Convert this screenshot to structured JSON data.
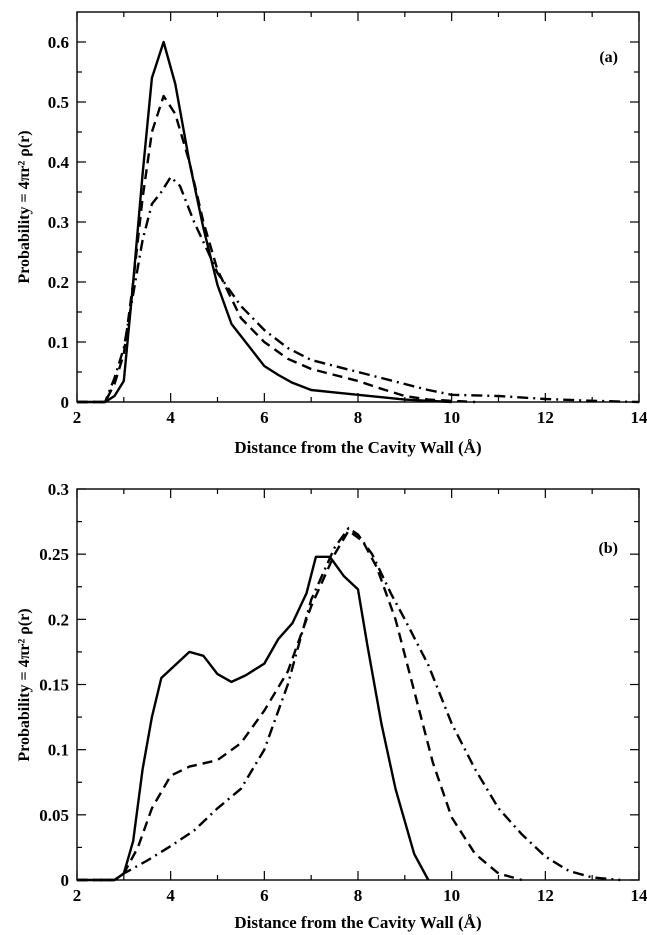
{
  "chart_data": [
    {
      "type": "line",
      "panel_label": "(a)",
      "xlabel": "Distance from the Cavity Wall (Å)",
      "ylabel": "Probability = 4πr² ρ(r)",
      "xlim": [
        2,
        14
      ],
      "ylim": [
        0,
        0.65
      ],
      "xticks": [
        2,
        4,
        6,
        8,
        10,
        12,
        14
      ],
      "yticks": [
        0,
        0.1,
        0.2,
        0.3,
        0.4,
        0.5,
        0.6
      ],
      "xtick_labels": [
        "2",
        "4",
        "6",
        "8",
        "10",
        "12",
        "14"
      ],
      "ytick_labels": [
        "0",
        "0.1",
        "0.2",
        "0.3",
        "0.4",
        "0.5",
        "0.6"
      ],
      "grid": false,
      "series": [
        {
          "style": "solid",
          "x": [
            2.0,
            2.6,
            2.8,
            3.0,
            3.2,
            3.4,
            3.6,
            3.85,
            4.1,
            4.4,
            4.7,
            5.0,
            5.3,
            5.6,
            6.0,
            6.3,
            6.6,
            7.0,
            7.5,
            8.0,
            8.5,
            9.0,
            9.5,
            10.0
          ],
          "y": [
            0.0,
            0.0,
            0.01,
            0.035,
            0.2,
            0.38,
            0.54,
            0.6,
            0.53,
            0.4,
            0.29,
            0.195,
            0.13,
            0.1,
            0.06,
            0.045,
            0.032,
            0.02,
            0.016,
            0.012,
            0.008,
            0.004,
            0.002,
            0.0
          ]
        },
        {
          "style": "dashed",
          "x": [
            2.0,
            2.6,
            2.8,
            3.0,
            3.2,
            3.4,
            3.6,
            3.85,
            4.1,
            4.4,
            4.7,
            5.0,
            5.5,
            6.0,
            6.5,
            7.0,
            7.5,
            8.0,
            8.5,
            9.0,
            9.5,
            10.0,
            10.5
          ],
          "y": [
            0.0,
            0.0,
            0.03,
            0.08,
            0.2,
            0.34,
            0.45,
            0.51,
            0.48,
            0.4,
            0.3,
            0.22,
            0.14,
            0.1,
            0.072,
            0.055,
            0.045,
            0.035,
            0.022,
            0.01,
            0.004,
            0.002,
            0.0
          ]
        },
        {
          "style": "dash-dot",
          "x": [
            2.0,
            2.6,
            2.8,
            3.0,
            3.2,
            3.4,
            3.6,
            3.8,
            4.0,
            4.2,
            4.5,
            4.8,
            5.0,
            5.5,
            6.0,
            6.5,
            7.0,
            7.5,
            8.0,
            8.5,
            9.0,
            9.5,
            10.0,
            11.0,
            12.0,
            13.0,
            14.0
          ],
          "y": [
            0.0,
            0.0,
            0.04,
            0.09,
            0.18,
            0.27,
            0.33,
            0.35,
            0.375,
            0.36,
            0.3,
            0.25,
            0.215,
            0.16,
            0.12,
            0.09,
            0.07,
            0.06,
            0.05,
            0.04,
            0.03,
            0.02,
            0.012,
            0.01,
            0.005,
            0.002,
            0.0
          ]
        }
      ]
    },
    {
      "type": "line",
      "panel_label": "(b)",
      "xlabel": "Distance from the Cavity Wall (Å)",
      "ylabel": "Probability = 4πr² ρ(r)",
      "xlim": [
        2,
        14
      ],
      "ylim": [
        0,
        0.3
      ],
      "xticks": [
        2,
        4,
        6,
        8,
        10,
        12,
        14
      ],
      "yticks": [
        0,
        0.05,
        0.1,
        0.15,
        0.2,
        0.25,
        0.3
      ],
      "xtick_labels": [
        "2",
        "4",
        "6",
        "8",
        "10",
        "12",
        "14"
      ],
      "ytick_labels": [
        "0",
        "0.05",
        "0.1",
        "0.15",
        "0.2",
        "0.25",
        "0.3"
      ],
      "grid": false,
      "series": [
        {
          "style": "solid",
          "x": [
            2.0,
            2.8,
            3.0,
            3.2,
            3.4,
            3.6,
            3.8,
            4.1,
            4.4,
            4.7,
            5.0,
            5.3,
            5.6,
            6.0,
            6.3,
            6.6,
            6.9,
            7.1,
            7.4,
            7.7,
            8.0,
            8.2,
            8.5,
            8.8,
            9.2,
            9.5
          ],
          "y": [
            0.0,
            0.0,
            0.005,
            0.03,
            0.085,
            0.125,
            0.155,
            0.165,
            0.175,
            0.172,
            0.158,
            0.152,
            0.157,
            0.166,
            0.185,
            0.197,
            0.22,
            0.248,
            0.248,
            0.233,
            0.223,
            0.18,
            0.12,
            0.07,
            0.02,
            0.0
          ]
        },
        {
          "style": "dashed",
          "x": [
            2.0,
            2.8,
            3.0,
            3.3,
            3.6,
            4.0,
            4.4,
            5.0,
            5.5,
            6.0,
            6.5,
            7.0,
            7.5,
            7.8,
            8.1,
            8.4,
            8.8,
            9.2,
            9.6,
            10.0,
            10.5,
            11.0,
            11.5
          ],
          "y": [
            0.0,
            0.0,
            0.005,
            0.025,
            0.055,
            0.08,
            0.087,
            0.092,
            0.105,
            0.13,
            0.16,
            0.21,
            0.25,
            0.268,
            0.26,
            0.24,
            0.2,
            0.145,
            0.09,
            0.048,
            0.02,
            0.005,
            0.0
          ]
        },
        {
          "style": "dash-dot",
          "x": [
            2.0,
            2.8,
            3.0,
            3.5,
            4.0,
            4.5,
            5.0,
            5.5,
            6.0,
            6.5,
            7.0,
            7.5,
            7.8,
            8.0,
            8.3,
            8.7,
            9.0,
            9.5,
            10.0,
            10.5,
            11.0,
            11.5,
            12.0,
            12.5,
            13.0,
            13.6
          ],
          "y": [
            0.0,
            0.0,
            0.005,
            0.015,
            0.026,
            0.038,
            0.055,
            0.07,
            0.1,
            0.15,
            0.215,
            0.255,
            0.27,
            0.265,
            0.25,
            0.22,
            0.2,
            0.165,
            0.12,
            0.085,
            0.055,
            0.035,
            0.018,
            0.007,
            0.002,
            0.0
          ]
        }
      ]
    }
  ]
}
